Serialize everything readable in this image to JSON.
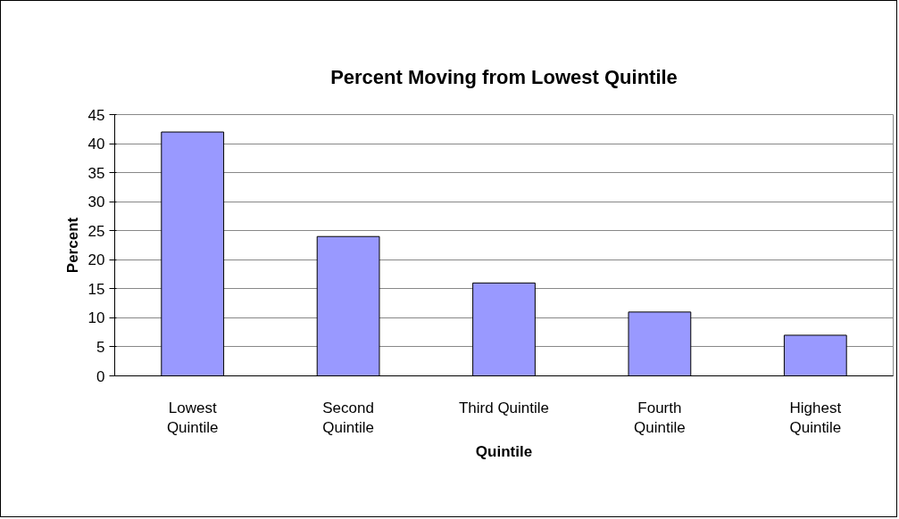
{
  "chart_data": {
    "type": "bar",
    "title": "Percent Moving from Lowest Quintile",
    "xlabel": "Quintile",
    "ylabel": "Percent",
    "categories": [
      "Lowest\nQuintile",
      "Second\nQuintile",
      "Third Quintile",
      "Fourth\nQuintile",
      "Highest\nQuintile"
    ],
    "values": [
      42,
      24,
      16,
      11,
      7
    ],
    "color": "#9999ff",
    "ylim": [
      0,
      45
    ],
    "yticks": [
      0,
      5,
      10,
      15,
      20,
      25,
      30,
      35,
      40,
      45
    ],
    "grid": "y"
  }
}
